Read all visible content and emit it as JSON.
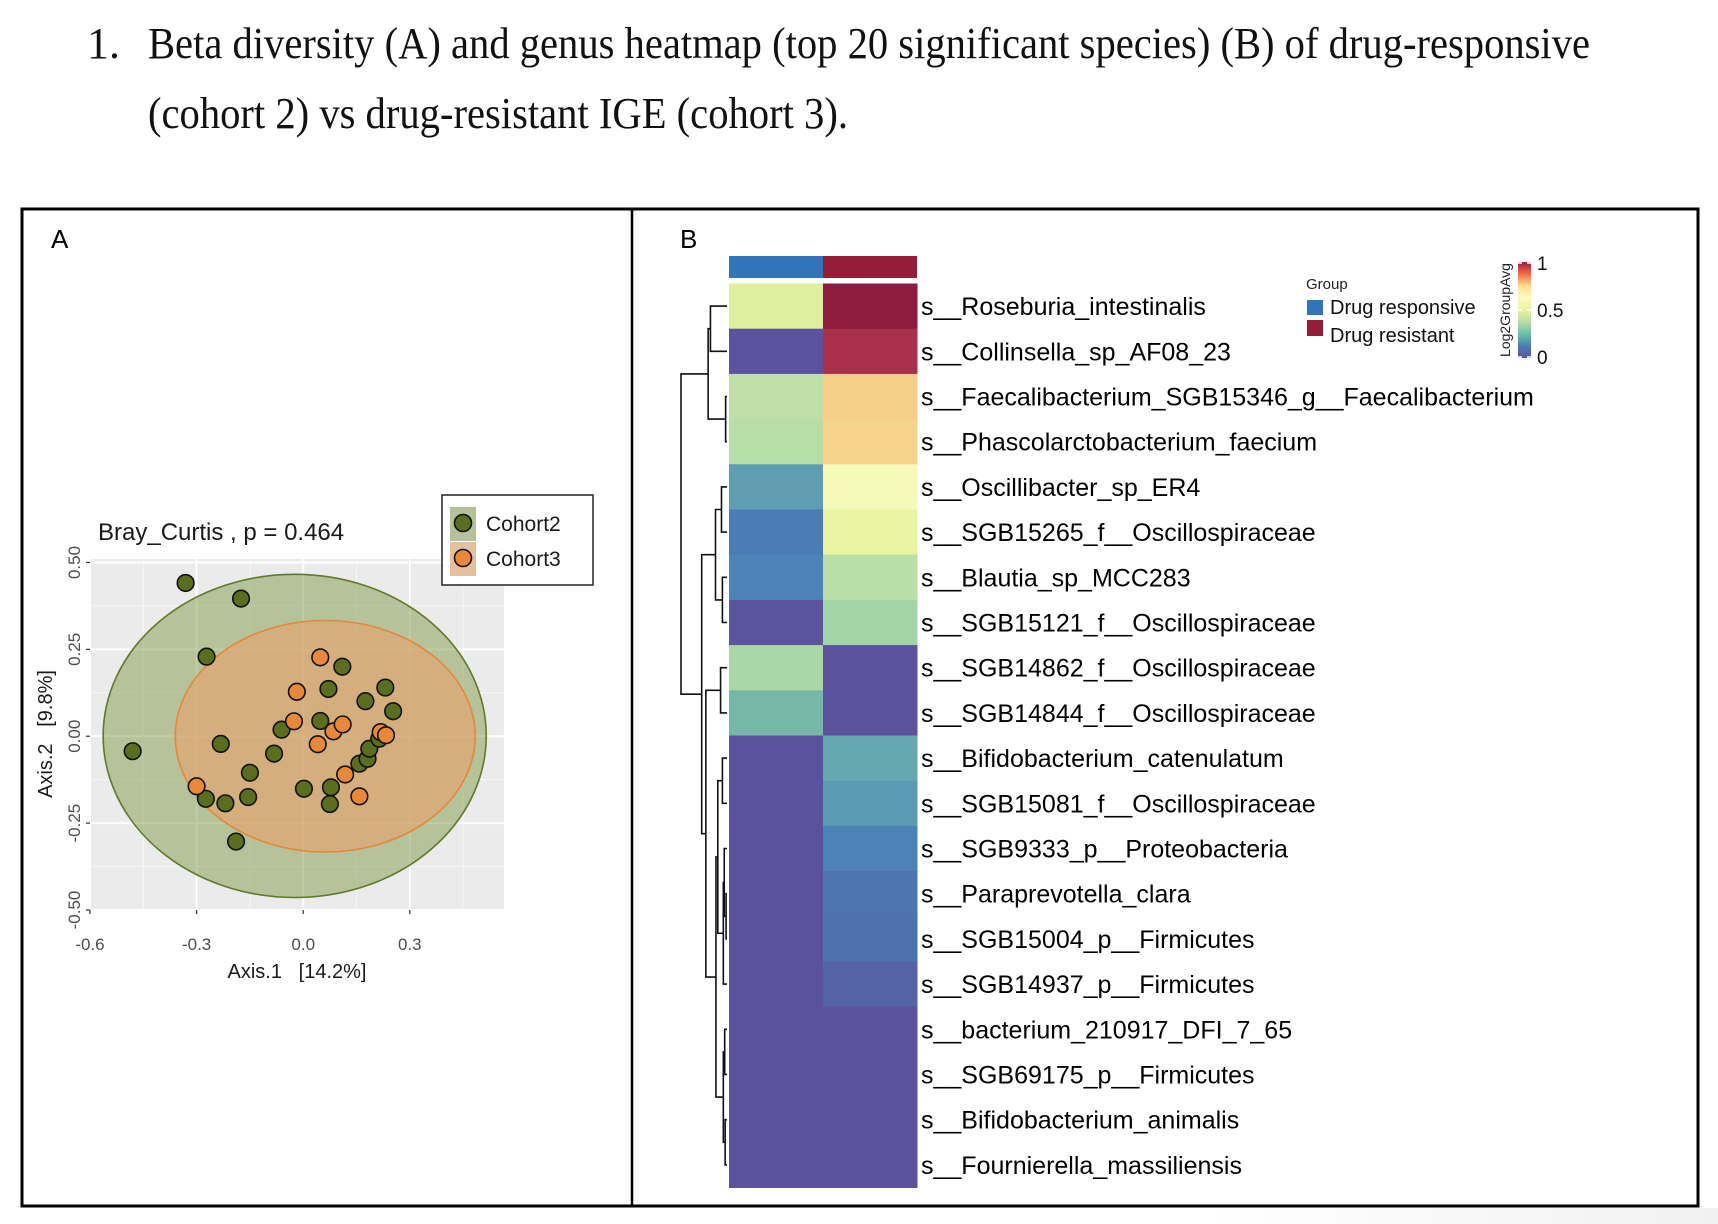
{
  "caption": {
    "number": "1.",
    "line1": "Beta diversity (A) and genus heatmap (top 20 significant species) (B) of drug-responsive",
    "line2": "(cohort 2) vs drug-resistant IGE (cohort 3)."
  },
  "chart_data": [
    {
      "panel_label": "A",
      "type": "scatter",
      "title": "Bray_Curtis , p = 0.464",
      "xlabel": "Axis.1   [14.2%]",
      "ylabel": "Axis.2   [9.8%]",
      "xlim": [
        -0.6,
        0.565
      ],
      "ylim": [
        -0.5,
        0.51
      ],
      "x_ticks": [
        -0.6,
        -0.3,
        0.0,
        0.3
      ],
      "x_tick_labels": [
        "-0.6",
        "-0.3",
        "0.0",
        "0.3"
      ],
      "y_ticks": [
        -0.5,
        -0.25,
        0.0,
        0.25,
        0.5
      ],
      "y_tick_labels": [
        "-0.50",
        "-0.25",
        "0.00",
        "0.25",
        "0.50"
      ],
      "grid": true,
      "legend_position": "top-right",
      "series": [
        {
          "name": "Cohort2",
          "color": "#5a6e1f",
          "ellipse_fill": "#7f9a4a",
          "ellipse_stroke": "#5f7a2a",
          "ellipse": {
            "cx": -0.024,
            "cy": 0.001,
            "rx": 0.539,
            "ry": 0.465
          },
          "points": [
            [
              -0.331,
              0.441
            ],
            [
              -0.175,
              0.396
            ],
            [
              -0.272,
              0.229
            ],
            [
              -0.48,
              -0.043
            ],
            [
              -0.232,
              -0.022
            ],
            [
              -0.061,
              0.019
            ],
            [
              -0.082,
              -0.05
            ],
            [
              -0.15,
              -0.105
            ],
            [
              -0.274,
              -0.18
            ],
            [
              -0.219,
              -0.193
            ],
            [
              -0.155,
              -0.175
            ],
            [
              -0.189,
              -0.303
            ],
            [
              0.002,
              -0.151
            ],
            [
              0.078,
              -0.147
            ],
            [
              0.075,
              -0.195
            ],
            [
              0.071,
              0.136
            ],
            [
              0.11,
              0.2
            ],
            [
              0.048,
              0.044
            ],
            [
              0.175,
              0.101
            ],
            [
              0.231,
              0.14
            ],
            [
              0.253,
              0.072
            ],
            [
              0.158,
              -0.079
            ],
            [
              0.181,
              -0.065
            ],
            [
              0.186,
              -0.036
            ],
            [
              0.214,
              -0.007
            ]
          ]
        },
        {
          "name": "Cohort3",
          "color": "#e8883a",
          "ellipse_fill": "#e9a06a",
          "ellipse_stroke": "#e08a3c",
          "ellipse": {
            "cx": 0.062,
            "cy": 0.0,
            "rx": 0.422,
            "ry": 0.333
          },
          "points": [
            [
              0.048,
              0.227
            ],
            [
              -0.018,
              0.128
            ],
            [
              -0.026,
              0.043
            ],
            [
              0.085,
              0.014
            ],
            [
              0.111,
              0.034
            ],
            [
              0.041,
              -0.023
            ],
            [
              -0.3,
              -0.144
            ],
            [
              0.118,
              -0.11
            ],
            [
              0.158,
              -0.173
            ],
            [
              0.218,
              0.012
            ],
            [
              0.233,
              0.003
            ]
          ]
        }
      ]
    },
    {
      "panel_label": "B",
      "type": "heatmap",
      "columns": [
        "Drug responsive",
        "Drug resistant"
      ],
      "group_legend": {
        "title": "Group",
        "items": [
          {
            "label": "Drug responsive",
            "color": "#3274b8"
          },
          {
            "label": "Drug resistant",
            "color": "#941e3a"
          }
        ]
      },
      "colorbar": {
        "title": "Log2GroupAvg",
        "range": [
          0,
          1
        ],
        "ticks": [
          1,
          0.5,
          0
        ],
        "tick_labels": [
          "1",
          "0.5",
          "0"
        ],
        "stops": [
          "#5c519d",
          "#4a7db5",
          "#66c2a5",
          "#b8dda6",
          "#e6f598",
          "#fffbbf",
          "#fee08b",
          "#f46d43",
          "#9e1a45"
        ]
      },
      "rows": [
        {
          "label": "s__Roseburia_intestinalis",
          "values": [
            0.39,
            1.0
          ],
          "colors": [
            "#dfee9f",
            "#8f1c41"
          ]
        },
        {
          "label": "s__Collinsella_sp_AF08_23",
          "values": [
            0.0,
            0.93
          ],
          "colors": [
            "#5b51a0",
            "#a8304a"
          ]
        },
        {
          "label": "s__Faecalibacterium_SGB15346_g__Faecalibacterium",
          "values": [
            0.31,
            0.62
          ],
          "colors": [
            "#bedfa7",
            "#f5cf88"
          ]
        },
        {
          "label": "s__Phascolarctobacterium_faecium",
          "values": [
            0.31,
            0.6
          ],
          "colors": [
            "#b8dda6",
            "#f5d58c"
          ]
        },
        {
          "label": "s__Oscillibacter_sp_ER4",
          "values": [
            0.14,
            0.48
          ],
          "colors": [
            "#5f9eb0",
            "#f5fab8"
          ]
        },
        {
          "label": "s__SGB15265_f__Oscillospiraceae",
          "values": [
            0.08,
            0.42
          ],
          "colors": [
            "#4a7db5",
            "#e9f4a2"
          ]
        },
        {
          "label": "s__Blautia_sp_MCC283",
          "values": [
            0.09,
            0.32
          ],
          "colors": [
            "#4e83b8",
            "#badea8"
          ]
        },
        {
          "label": "s__SGB15121_f__Oscillospiraceae",
          "values": [
            0.01,
            0.28
          ],
          "colors": [
            "#5b55a0",
            "#a2d4a7"
          ]
        },
        {
          "label": "s__SGB14862_f__Oscillospiraceae",
          "values": [
            0.29,
            0.0
          ],
          "colors": [
            "#a9d8a6",
            "#5c519d"
          ]
        },
        {
          "label": "s__SGB14844_f__Oscillospiraceae",
          "values": [
            0.19,
            0.0
          ],
          "colors": [
            "#76b8a7",
            "#5c519d"
          ]
        },
        {
          "label": "s__Bifidobacterium_catenulatum",
          "values": [
            0.0,
            0.15
          ],
          "colors": [
            "#5c519d",
            "#66a8b0"
          ]
        },
        {
          "label": "s__SGB15081_f__Oscillospiraceae",
          "values": [
            0.0,
            0.13
          ],
          "colors": [
            "#5c519d",
            "#5b9cb2"
          ]
        },
        {
          "label": "s__SGB9333_p__Proteobacteria",
          "values": [
            0.0,
            0.08
          ],
          "colors": [
            "#5c519d",
            "#4b83b6"
          ]
        },
        {
          "label": "s__Paraprevotella_clara",
          "values": [
            0.0,
            0.06
          ],
          "colors": [
            "#5c519d",
            "#4d74ae"
          ]
        },
        {
          "label": "s__SGB15004_p__Firmicutes",
          "values": [
            0.0,
            0.055
          ],
          "colors": [
            "#5c519d",
            "#4e72ad"
          ]
        },
        {
          "label": "s__SGB14937_p__Firmicutes",
          "values": [
            0.0,
            0.03
          ],
          "colors": [
            "#5c519d",
            "#5462a6"
          ]
        },
        {
          "label": "s__bacterium_210917_DFI_7_65",
          "values": [
            0.0,
            0.0
          ],
          "colors": [
            "#5c519d",
            "#5c519d"
          ]
        },
        {
          "label": "s__SGB69175_p__Firmicutes",
          "values": [
            0.0,
            0.0
          ],
          "colors": [
            "#5c519d",
            "#5c519d"
          ]
        },
        {
          "label": "s__Bifidobacterium_animalis",
          "values": [
            0.0,
            0.0
          ],
          "colors": [
            "#5c519d",
            "#5c519d"
          ]
        },
        {
          "label": "s__Fournierella_massiliensis",
          "values": [
            0.0,
            0.0
          ],
          "colors": [
            "#5c519d",
            "#5c519d"
          ]
        }
      ],
      "row_dendrogram": [
        {
          "a": 0,
          "b": 1,
          "height": 0.36
        },
        {
          "a": 2,
          "b": 3,
          "height": 0.03
        },
        {
          "a": "n0",
          "b": "n1",
          "height": 0.41
        },
        {
          "a": 4,
          "b": 5,
          "height": 0.12
        },
        {
          "a": 6,
          "b": 7,
          "height": 0.1
        },
        {
          "a": "n3",
          "b": "n4",
          "height": 0.25
        },
        {
          "a": 8,
          "b": 9,
          "height": 0.14
        },
        {
          "a": 10,
          "b": 11,
          "height": 0.1
        },
        {
          "a": 13,
          "b": 14,
          "height": 0.02
        },
        {
          "a": 12,
          "b": "n8",
          "height": 0.06
        },
        {
          "a": "n9",
          "b": 15,
          "height": 0.08
        },
        {
          "a": "n7",
          "b": "n10",
          "height": 0.2
        },
        {
          "a": 16,
          "b": 17,
          "height": 0.05
        },
        {
          "a": 18,
          "b": 19,
          "height": 0.04
        },
        {
          "a": "n12",
          "b": "n13",
          "height": 0.08
        },
        {
          "a": "n11",
          "b": "n14",
          "height": 0.24
        },
        {
          "a": "n6",
          "b": "n15",
          "height": 0.46
        },
        {
          "a": "n5",
          "b": "n16",
          "height": 0.55
        },
        {
          "a": "n2",
          "b": "n17",
          "height": 1.0
        }
      ]
    }
  ]
}
